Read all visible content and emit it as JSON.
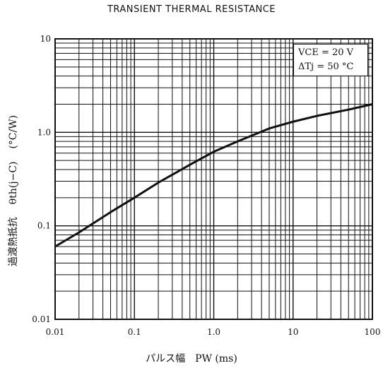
{
  "chart_data": {
    "type": "line",
    "title": "TRANSIENT THERMAL RESISTANCE",
    "xlabel": "パルス幅　PW (ms)",
    "ylabel_jp": "過渡熱抵抗",
    "ylabel_symbol": "θth(j−C)",
    "ylabel_unit": "(°C/W)",
    "x_scale": "log",
    "y_scale": "log",
    "xlim": [
      0.01,
      100
    ],
    "ylim": [
      0.01,
      10
    ],
    "x_ticks": [
      "0.01",
      "0.1",
      "1.0",
      "10",
      "100"
    ],
    "y_ticks": [
      "0.01",
      "0.1",
      "1.0",
      "10"
    ],
    "grid": true,
    "annotation": {
      "line1": "VCE = 20 V",
      "line2": "ΔTj = 50 °C",
      "placement": "top-right"
    },
    "series": [
      {
        "x": [
          0.01,
          0.02,
          0.05,
          0.1,
          0.2,
          0.5,
          1.0,
          2.0,
          5.0,
          10,
          20,
          50,
          100
        ],
        "y": [
          0.06,
          0.085,
          0.14,
          0.2,
          0.29,
          0.45,
          0.62,
          0.8,
          1.1,
          1.3,
          1.5,
          1.75,
          2.0
        ]
      }
    ],
    "line_color": "#111111"
  }
}
